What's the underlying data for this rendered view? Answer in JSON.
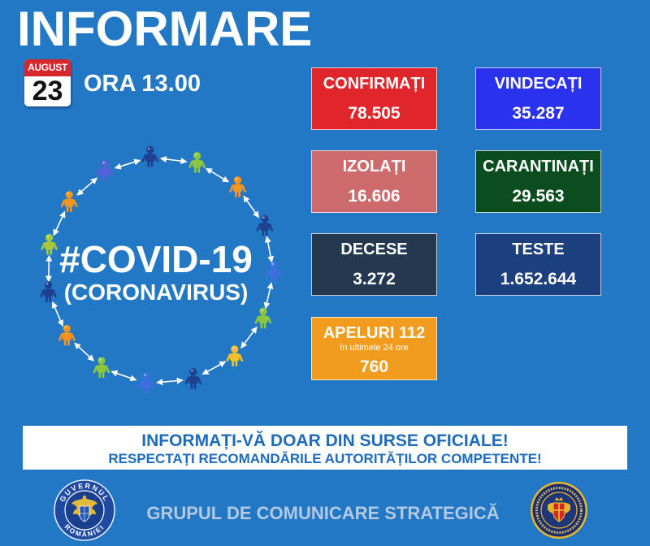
{
  "header": {
    "title": "INFORMARE"
  },
  "date": {
    "month": "AUGUST",
    "day": "23",
    "time": "ORA 13.00"
  },
  "hero": {
    "hashtag": "#COVID-19",
    "subtitle": "(CORONAVIRUS)"
  },
  "stats": [
    {
      "label": "CONFIRMAȚI",
      "value": "78.505",
      "color": "#e0262a"
    },
    {
      "label": "VINDECAȚI",
      "value": "35.287",
      "color": "#2b32ee"
    },
    {
      "label": "IZOLAȚI",
      "value": "16.606",
      "color": "#cd6a6c"
    },
    {
      "label": "CARANTINAȚI",
      "value": "29.563",
      "color": "#0b4d1e"
    },
    {
      "label": "DECESE",
      "value": "3.272",
      "color": "#24384f"
    },
    {
      "label": "TESTE",
      "value": "1.652.644",
      "color": "#1c3f7d"
    },
    {
      "label": "APELURI 112",
      "note": "în ultimele 24 ore",
      "value": "760",
      "color": "#f29c1f"
    }
  ],
  "banner": {
    "line1": "INFORMAȚI-VĂ DOAR DIN SURSE OFICIALE!",
    "line2": "RESPECTAȚI RECOMANDĂRILE AUTORITĂȚILOR COMPETENTE!"
  },
  "footer": {
    "org": "GRUPUL DE COMUNICARE STRATEGICĂ",
    "seal_left": {
      "top": "GUVERNUL",
      "bottom": "ROMÂNIEI"
    }
  },
  "colors": {
    "background": "#2378c6",
    "banner_text": "#1d6bbd",
    "footer_text": "#b3c9e2",
    "calendar_red": "#d7262c"
  }
}
